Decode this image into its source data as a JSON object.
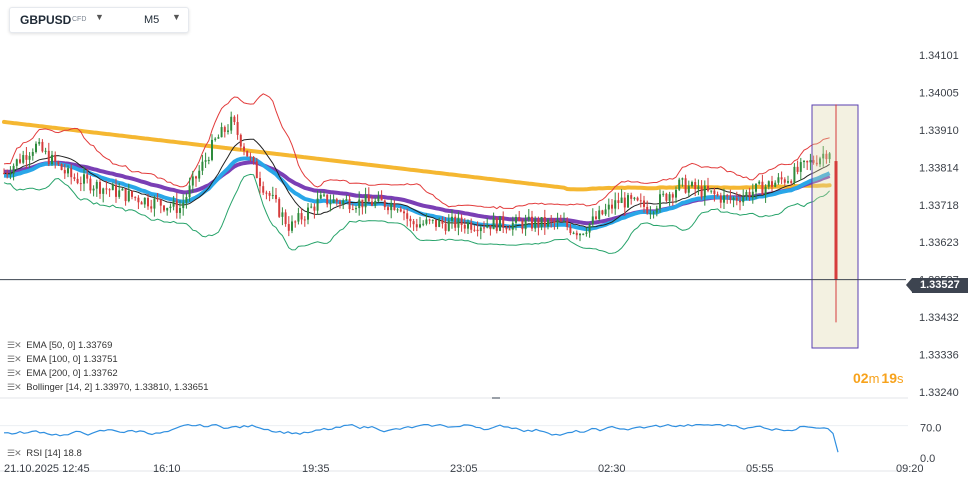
{
  "header": {
    "symbol": "GBPUSD",
    "instrument_type": "CFD",
    "timeframe": "M5"
  },
  "price_axis": {
    "ticks": [
      "1.34101",
      "1.34005",
      "1.33910",
      "1.33814",
      "1.33718",
      "1.33623",
      "1.33527",
      "1.33432",
      "1.33336",
      "1.33240"
    ]
  },
  "current_price": "1.33527",
  "rsi_axis": {
    "ticks": [
      "70.0",
      "0.0"
    ]
  },
  "time_axis": {
    "labels": [
      "21.10.2025  12:45",
      "16:10",
      "19:35",
      "23:05",
      "02:30",
      "05:55",
      "09:20"
    ]
  },
  "indicators": [
    {
      "name": "EMA",
      "params": "[50, 0]",
      "value": "1.33769",
      "color": "#7a3fb5"
    },
    {
      "name": "EMA",
      "params": "[100, 0]",
      "value": "1.33751",
      "color": "#29a6e8"
    },
    {
      "name": "EMA",
      "params": "[200, 0]",
      "value": "1.33762",
      "color": "#f5b731"
    },
    {
      "name": "Bollinger",
      "params": "[14, 2]",
      "value": "1.33970,  1.33810,  1.33651",
      "color": "#e23b3b"
    }
  ],
  "rsi": {
    "name": "RSI",
    "params": "[14]",
    "value": "18.8",
    "color": "#2f8fe0"
  },
  "candle_timer": {
    "minutes": "02",
    "m": "m",
    "seconds": "19",
    "s": "s"
  },
  "colors": {
    "bull": "#2e8b3d",
    "bear": "#d63c3c",
    "highlight_box": "#5a3fb0"
  },
  "chart_data": {
    "type": "candlestick",
    "symbol": "GBPUSD",
    "timeframe": "M5",
    "ylim": [
      1.3324,
      1.34101
    ],
    "series_close_approx": [
      {
        "t": "21.10.2025 12:45",
        "v": 1.3378
      },
      {
        "t": "16:10",
        "v": 1.3381
      },
      {
        "t": "17:30",
        "v": 1.3389
      },
      {
        "t": "19:35",
        "v": 1.3367
      },
      {
        "t": "23:05",
        "v": 1.3369
      },
      {
        "t": "02:30",
        "v": 1.337
      },
      {
        "t": "05:55",
        "v": 1.3379
      },
      {
        "t": "07:20",
        "v": 1.3385
      },
      {
        "t": "07:45",
        "v": 1.33527
      }
    ],
    "rsi_last": 18.8
  }
}
